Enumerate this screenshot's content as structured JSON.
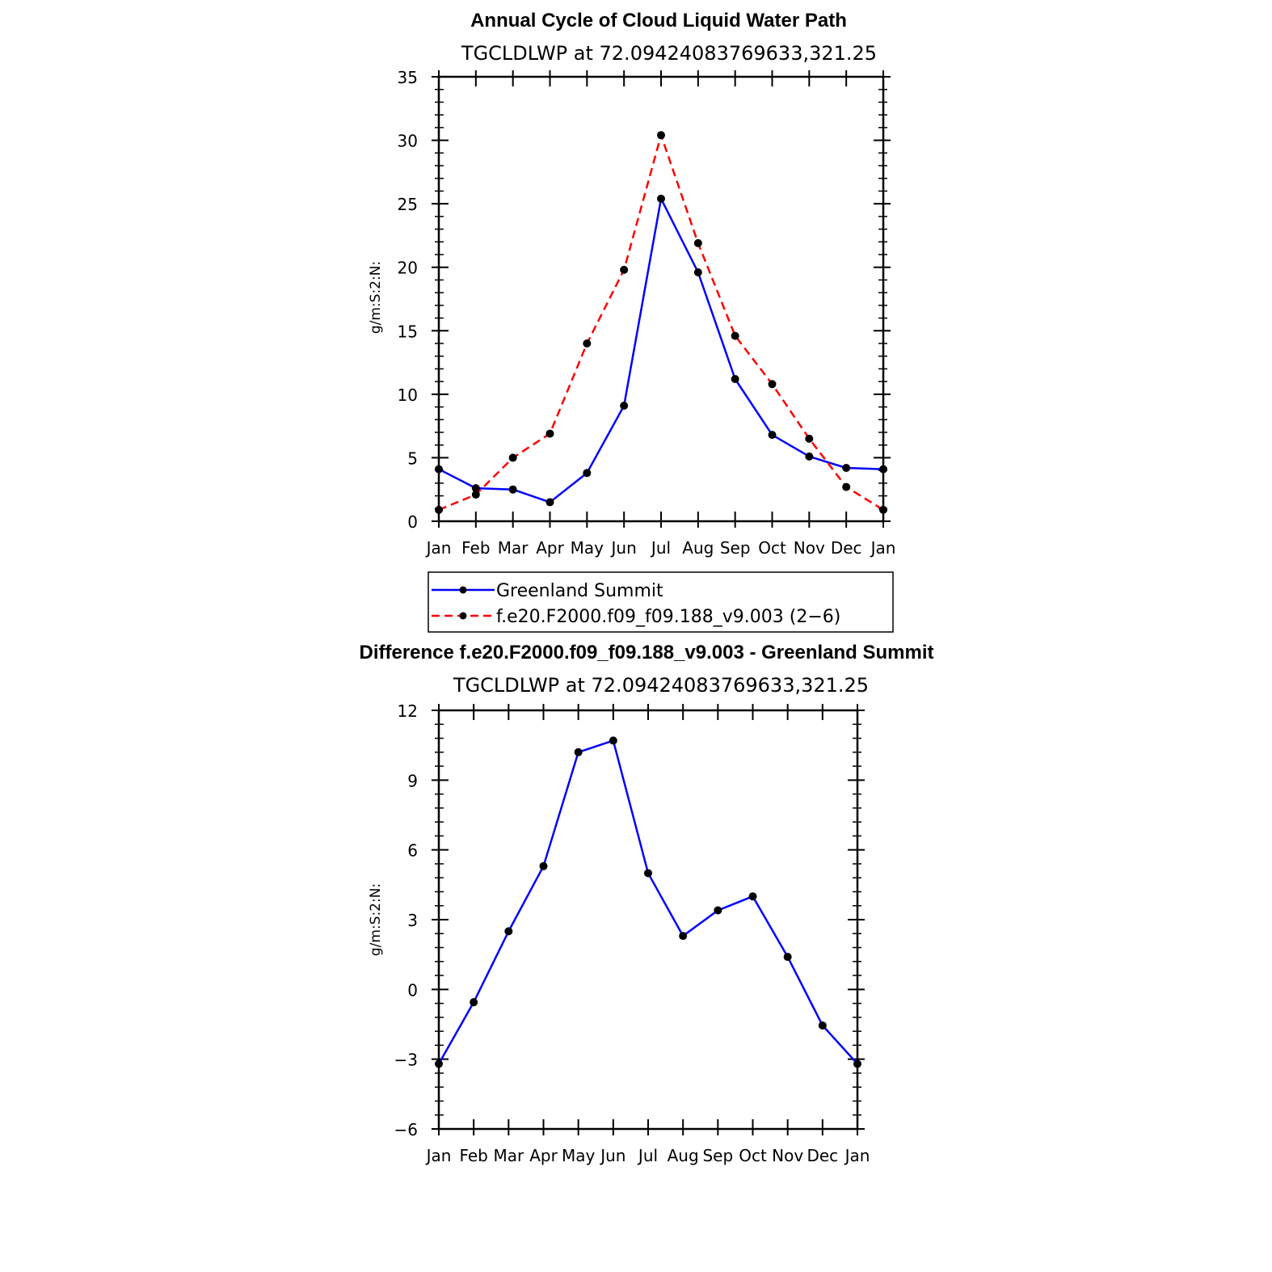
{
  "chart_data": [
    {
      "type": "line",
      "title": "Annual Cycle of Cloud Liquid Water Path",
      "subtitle": "TGCLDLWP  at  72.09424083769633,321.25",
      "xlabel": "",
      "ylabel": "g/m:S:2:N:",
      "categories": [
        "Jan",
        "Feb",
        "Mar",
        "Apr",
        "May",
        "Jun",
        "Jul",
        "Aug",
        "Sep",
        "Oct",
        "Nov",
        "Dec",
        "Jan"
      ],
      "ylim": [
        0,
        35
      ],
      "yticks": [
        0,
        5,
        10,
        15,
        20,
        25,
        30,
        35
      ],
      "series": [
        {
          "name": "Greenland Summit",
          "color": "#0000ff",
          "dash": "solid",
          "values": [
            4.1,
            2.6,
            2.5,
            1.5,
            3.8,
            9.1,
            25.4,
            19.6,
            11.2,
            6.8,
            5.1,
            4.2,
            4.1
          ]
        },
        {
          "name": "f.e20.F2000.f09_f09.188_v9.003 (2−6)",
          "color": "#ff0000",
          "dash": "dashed",
          "values": [
            0.9,
            2.1,
            5.0,
            6.9,
            14.0,
            19.8,
            30.4,
            21.9,
            14.6,
            10.8,
            6.5,
            2.7,
            0.9
          ]
        }
      ],
      "legend": "below"
    },
    {
      "type": "line",
      "title": "Difference f.e20.F2000.f09_f09.188_v9.003 - Greenland Summit",
      "subtitle": "TGCLDLWP  at  72.09424083769633,321.25",
      "xlabel": "",
      "ylabel": "g/m:S:2:N:",
      "categories": [
        "Jan",
        "Feb",
        "Mar",
        "Apr",
        "May",
        "Jun",
        "Jul",
        "Aug",
        "Sep",
        "Oct",
        "Nov",
        "Dec",
        "Jan"
      ],
      "ylim": [
        -6,
        12
      ],
      "yticks": [
        -6,
        -3,
        0,
        3,
        6,
        9,
        12
      ],
      "ytick_labels": [
        "−6",
        "−3",
        "0",
        "3",
        "6",
        "9",
        "12"
      ],
      "series": [
        {
          "name": "Difference",
          "color": "#0000ff",
          "dash": "solid",
          "values": [
            -3.2,
            -0.55,
            2.5,
            5.3,
            10.2,
            10.7,
            5.0,
            2.3,
            3.4,
            4.0,
            1.4,
            -1.55,
            -3.2
          ]
        }
      ]
    }
  ]
}
